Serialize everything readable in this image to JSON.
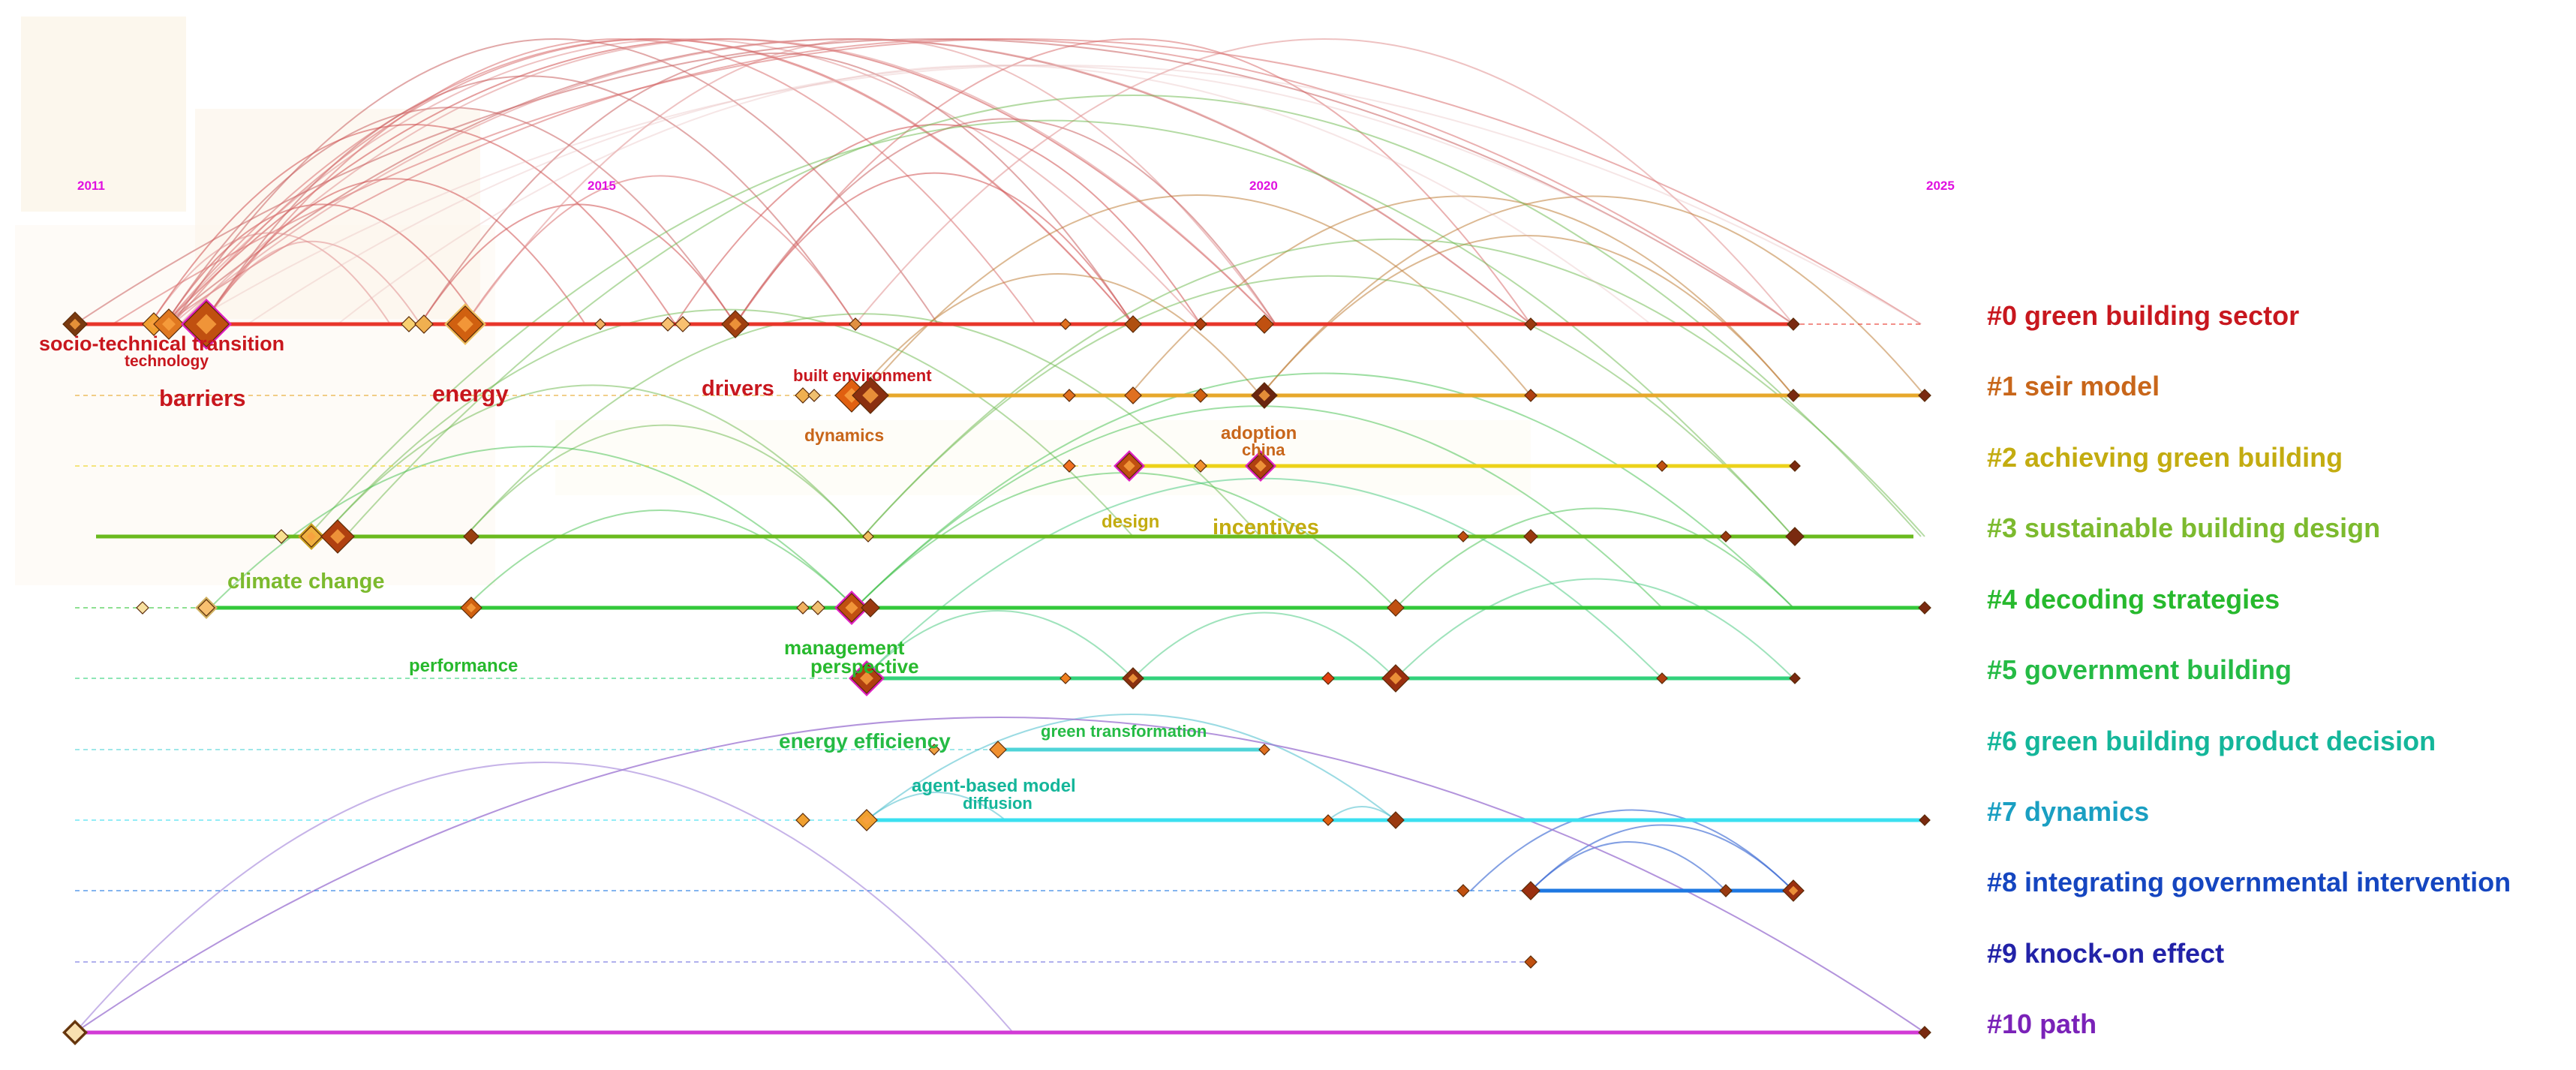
{
  "years": [
    "2011",
    "2015",
    "2020",
    "2025"
  ],
  "clusters": [
    {
      "label": "#0 green building sector",
      "color": "#c8171e",
      "line": "#e8352a"
    },
    {
      "label": "#1 seir model",
      "color": "#c8661a",
      "line": "#e7a82b"
    },
    {
      "label": "#2 achieving green building",
      "color": "#c3ac10",
      "line": "#ecd21a"
    },
    {
      "label": "#3 sustainable building design",
      "color": "#7cba2e",
      "line": "#6aba1e"
    },
    {
      "label": "#4 decoding strategies",
      "color": "#27b92d",
      "line": "#33c83a"
    },
    {
      "label": "#5 government building",
      "color": "#25bb45",
      "line": "#33d27c"
    },
    {
      "label": "#6 green building product decision",
      "color": "#14b69a",
      "line": "#4fd4d8"
    },
    {
      "label": "#7 dynamics",
      "color": "#1a9fc2",
      "line": "#3be0f0"
    },
    {
      "label": "#8 integrating governmental intervention",
      "color": "#1546c0",
      "line": "#1e78e2"
    },
    {
      "label": "#9 knock-on effect",
      "color": "#2222a8",
      "line": "#7070e0"
    },
    {
      "label": "#10 path",
      "color": "#7a22b8",
      "line": "#d23ad6"
    }
  ],
  "keywords": [
    {
      "text": "socio-technical transition",
      "color": "#c8171e"
    },
    {
      "text": "technology",
      "color": "#c8171e"
    },
    {
      "text": "barriers",
      "color": "#c8171e"
    },
    {
      "text": "energy",
      "color": "#c8171e"
    },
    {
      "text": "drivers",
      "color": "#c8171e"
    },
    {
      "text": "built environment",
      "color": "#c8171e"
    },
    {
      "text": "dynamics",
      "color": "#c8661a"
    },
    {
      "text": "adoption",
      "color": "#c8661a"
    },
    {
      "text": "china",
      "color": "#c8661a"
    },
    {
      "text": "design",
      "color": "#c3ac10"
    },
    {
      "text": "incentives",
      "color": "#c3ac10"
    },
    {
      "text": "climate change",
      "color": "#7cba2e"
    },
    {
      "text": "performance",
      "color": "#27b92d"
    },
    {
      "text": "management",
      "color": "#27b92d"
    },
    {
      "text": "perspective",
      "color": "#27b92d"
    },
    {
      "text": "energy efficiency",
      "color": "#25bb45"
    },
    {
      "text": "green transformation",
      "color": "#25bb45"
    },
    {
      "text": "agent-based model",
      "color": "#14b69a"
    },
    {
      "text": "diffusion",
      "color": "#14b69a"
    }
  ]
}
